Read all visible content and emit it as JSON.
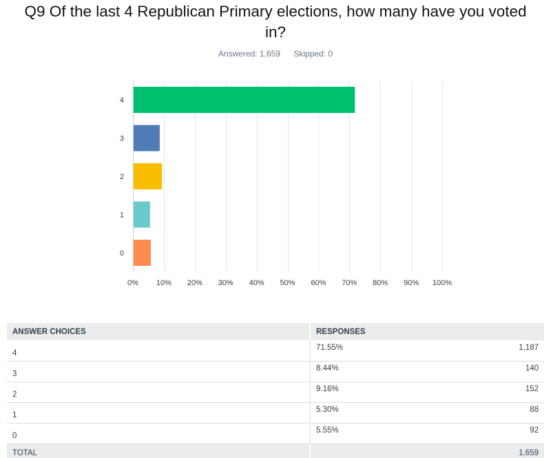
{
  "question": {
    "title": "Q9 Of the last 4 Republican Primary elections, how many have you voted in?",
    "answered_label": "Answered: 1,659",
    "skipped_label": "Skipped: 0"
  },
  "chart_data": {
    "type": "bar",
    "orientation": "horizontal",
    "categories": [
      "4",
      "3",
      "2",
      "1",
      "0"
    ],
    "values": [
      71.55,
      8.44,
      9.16,
      5.3,
      5.55
    ],
    "colors": [
      "#00bf6f",
      "#507cb6",
      "#f9be00",
      "#6bc8cd",
      "#ff8b4f"
    ],
    "xlim": [
      0,
      100
    ],
    "xticks": [
      "0%",
      "10%",
      "20%",
      "30%",
      "40%",
      "50%",
      "60%",
      "70%",
      "80%",
      "90%",
      "100%"
    ],
    "grid": true,
    "title": "",
    "xlabel": "",
    "ylabel": ""
  },
  "table": {
    "headers": [
      "ANSWER CHOICES",
      "RESPONSES"
    ],
    "rows": [
      {
        "choice": "4",
        "percent": "71.55%",
        "count": "1,187"
      },
      {
        "choice": "3",
        "percent": "8.44%",
        "count": "140"
      },
      {
        "choice": "2",
        "percent": "9.16%",
        "count": "152"
      },
      {
        "choice": "1",
        "percent": "5.30%",
        "count": "88"
      },
      {
        "choice": "0",
        "percent": "5.55%",
        "count": "92"
      }
    ],
    "total_label": "TOTAL",
    "total_count": "1,659"
  }
}
